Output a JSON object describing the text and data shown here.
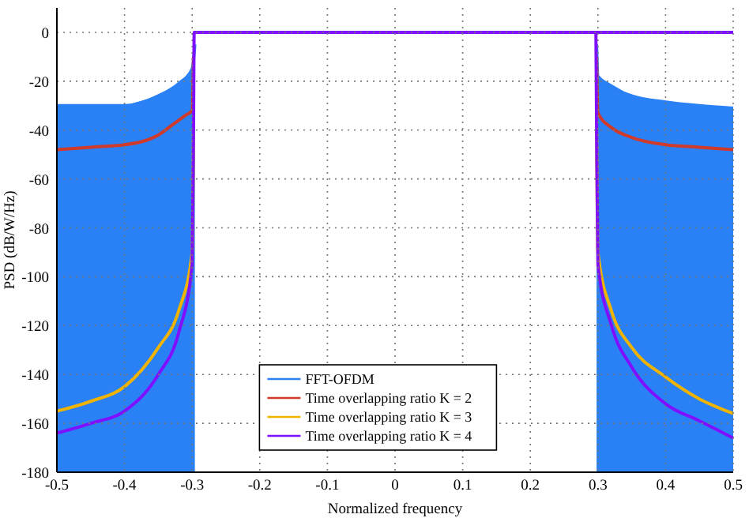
{
  "chart_data": {
    "type": "line",
    "xlabel": "Normalized frequency",
    "ylabel": "PSD (dB/W/Hz)",
    "xlim": [
      -0.5,
      0.5
    ],
    "ylim": [
      -180,
      10
    ],
    "xticks": [
      -0.5,
      -0.4,
      -0.3,
      -0.2,
      -0.1,
      0,
      0.1,
      0.2,
      0.3,
      0.4,
      0.5
    ],
    "yticks": [
      0,
      -20,
      -40,
      -60,
      -80,
      -100,
      -120,
      -140,
      -160,
      -180
    ],
    "grid": true,
    "legend": "bottom right",
    "line_style": "solid",
    "marker": "none",
    "series": [
      {
        "name": "FFT-OFDM",
        "color": "#2a80f5",
        "x": [
          -0.5,
          -0.45,
          -0.4,
          -0.35,
          -0.32,
          -0.3,
          -0.296
        ],
        "values": [
          -30,
          -30,
          -30,
          -26,
          -21,
          -15,
          -5
        ],
        "lower": [
          -180,
          -180,
          -180,
          -180,
          -180,
          -180,
          -180
        ],
        "upper": [
          -30,
          -30,
          -30,
          -26,
          -21,
          -15,
          -5
        ]
      },
      {
        "color": "#2a80f5",
        "x": [
          0.298,
          0.3,
          0.35,
          0.4,
          0.45,
          0.5
        ],
        "values": [
          -5,
          -18,
          -26,
          -28.5,
          -30,
          -31
        ],
        "lower": [
          -180,
          -180,
          -180,
          -180,
          -180,
          -180
        ],
        "upper": [
          -5,
          -18,
          -26,
          -28.5,
          -30,
          -31
        ]
      },
      {
        "name": "Time overlapping ratio K = 2",
        "color": "#d03a2a",
        "x": [
          -0.5,
          -0.45,
          -0.4,
          -0.35,
          -0.33,
          -0.31,
          -0.3,
          -0.298,
          -0.297,
          0.297,
          0.298,
          0.3,
          0.32,
          0.35,
          0.4,
          0.45,
          0.5
        ],
        "values": [
          -48,
          -47,
          -46,
          -42,
          -38,
          -34,
          -32,
          -10,
          null,
          null,
          -10,
          -33,
          -39,
          -43,
          -46,
          -47,
          -48
        ]
      },
      {
        "name": "Time overlapping ratio K = 3",
        "color": "#f0b400",
        "x": [
          -0.5,
          -0.45,
          -0.4,
          -0.35,
          -0.32,
          -0.3,
          -0.298,
          -0.297,
          0.297,
          0.298,
          0.3,
          0.32,
          0.35,
          0.4,
          0.45,
          0.5
        ],
        "values": [
          -155,
          -151,
          -145,
          -129,
          -114,
          -90,
          -40,
          null,
          null,
          -40,
          -90,
          -114,
          -129,
          -141,
          -150,
          -156
        ]
      },
      {
        "name": "Time overlapping ratio K = 4",
        "color": "#7f10ff",
        "x": [
          -0.5,
          -0.45,
          -0.4,
          -0.35,
          -0.32,
          -0.3,
          -0.298,
          -0.297,
          -0.2,
          -0.1,
          0,
          0.1,
          0.2,
          0.297,
          0.298,
          0.3,
          0.32,
          0.35,
          0.4,
          0.45,
          0.5
        ],
        "values": [
          -164,
          -160,
          -155,
          -140,
          -123,
          -95,
          -40,
          0,
          0,
          0,
          0,
          0,
          0,
          0,
          -40,
          -95,
          -120,
          -137,
          -152,
          -159,
          -166
        ]
      },
      {
        "color": "#7f10ff",
        "x": [
          0.297,
          0.5
        ],
        "values": [
          0,
          0
        ]
      }
    ]
  }
}
